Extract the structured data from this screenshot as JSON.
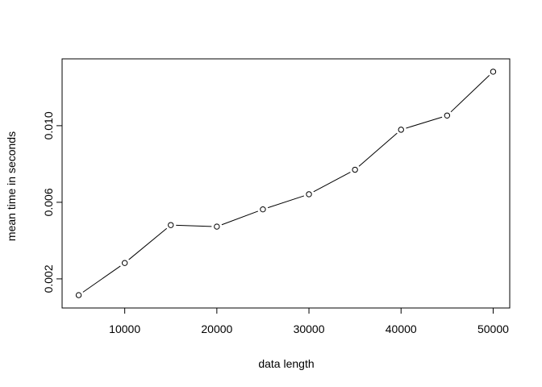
{
  "chart_data": {
    "type": "line",
    "title": "",
    "xlabel": "data length",
    "ylabel": "mean time in seconds",
    "x": [
      5000,
      10000,
      15000,
      20000,
      25000,
      30000,
      35000,
      40000,
      45000,
      50000
    ],
    "series": [
      {
        "values": [
          0.00115,
          0.00283,
          0.00481,
          0.00473,
          0.00563,
          0.00642,
          0.0077,
          0.00979,
          0.01053,
          0.01282
        ],
        "marker": "open-circle",
        "line": "solid",
        "color": "#000000"
      }
    ],
    "xlim": [
      3200,
      51800
    ],
    "ylim": [
      0.00048,
      0.01349
    ],
    "xticks": [
      10000,
      20000,
      30000,
      40000,
      50000
    ],
    "xtick_labels": [
      "10000",
      "20000",
      "30000",
      "40000",
      "50000"
    ],
    "yticks": [
      0.002,
      0.006,
      0.01
    ],
    "ytick_labels": [
      "0.002",
      "0.006",
      "0.010"
    ],
    "grid": false,
    "legend": "none"
  }
}
